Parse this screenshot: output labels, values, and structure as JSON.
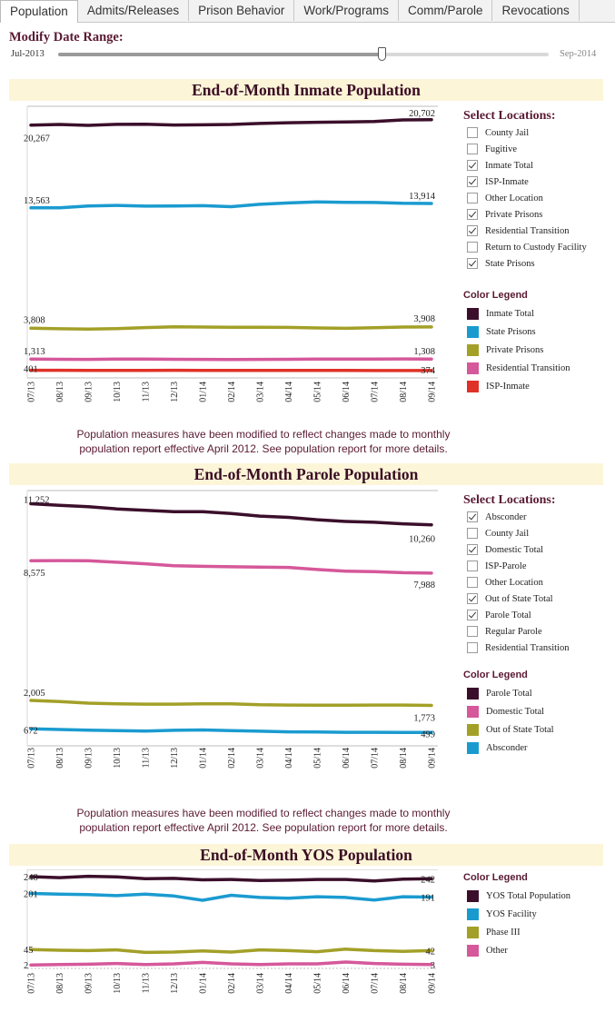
{
  "tabs": [
    "Population",
    "Admits/Releases",
    "Prison Behavior",
    "Work/Programs",
    "Comm/Parole",
    "Revocations"
  ],
  "active_tab": 0,
  "date_range": {
    "title": "Modify Date Range:",
    "start_label": "Jul-2013",
    "end_label": "Sep-2014",
    "position": 0.66
  },
  "note_line1": "Population measures have been modified to reflect changes made to monthly",
  "note_line2": "population report effective April 2012. See population report for more details.",
  "inmate": {
    "banner": "End-of-Month Inmate Population",
    "select_title": "Select Locations:",
    "locations": [
      {
        "label": "County Jail",
        "checked": false
      },
      {
        "label": "Fugitive",
        "checked": false
      },
      {
        "label": "Inmate Total",
        "checked": true
      },
      {
        "label": "ISP-Inmate",
        "checked": true
      },
      {
        "label": "Other Location",
        "checked": false
      },
      {
        "label": "Private Prisons",
        "checked": true
      },
      {
        "label": "Residential Transition",
        "checked": true
      },
      {
        "label": "Return to Custody Facility",
        "checked": false
      },
      {
        "label": "State Prisons",
        "checked": true
      }
    ],
    "legend_title": "Color Legend",
    "legend": [
      {
        "label": "Inmate Total",
        "color": "#3b0f2b"
      },
      {
        "label": "State Prisons",
        "color": "#1a9bd0"
      },
      {
        "label": "Private Prisons",
        "color": "#a3a028"
      },
      {
        "label": "Residential Transition",
        "color": "#d5589a"
      },
      {
        "label": "ISP-Inmate",
        "color": "#e03128"
      }
    ]
  },
  "parole": {
    "banner": "End-of-Month Parole Population",
    "select_title": "Select Locations:",
    "locations": [
      {
        "label": "Absconder",
        "checked": true
      },
      {
        "label": "County Jail",
        "checked": false
      },
      {
        "label": "Domestic Total",
        "checked": true
      },
      {
        "label": "ISP-Parole",
        "checked": false
      },
      {
        "label": "Other Location",
        "checked": false
      },
      {
        "label": "Out of State Total",
        "checked": true
      },
      {
        "label": "Parole Total",
        "checked": true
      },
      {
        "label": "Regular Parole",
        "checked": false
      },
      {
        "label": "Residential Transition",
        "checked": false
      }
    ],
    "legend_title": "Color Legend",
    "legend": [
      {
        "label": "Parole Total",
        "color": "#3b0f2b"
      },
      {
        "label": "Domestic Total",
        "color": "#d5589a"
      },
      {
        "label": "Out of State Total",
        "color": "#a3a028"
      },
      {
        "label": "Absconder",
        "color": "#1a9bd0"
      }
    ]
  },
  "yos": {
    "banner": "End-of-Month YOS Population",
    "legend_title": "Color Legend",
    "legend": [
      {
        "label": "YOS Total Population",
        "color": "#3b0f2b"
      },
      {
        "label": "YOS Facility",
        "color": "#1a9bd0"
      },
      {
        "label": "Phase III",
        "color": "#a3a028"
      },
      {
        "label": "Other",
        "color": "#d5589a"
      }
    ]
  },
  "chart_data": [
    {
      "type": "line",
      "title": "End-of-Month Inmate Population",
      "x": [
        "07/13",
        "08/13",
        "09/13",
        "10/13",
        "11/13",
        "12/13",
        "01/14",
        "02/14",
        "03/14",
        "04/14",
        "05/14",
        "06/14",
        "07/14",
        "08/14",
        "09/14"
      ],
      "ylim": [
        0,
        21500
      ],
      "series": [
        {
          "name": "Inmate Total",
          "color": "#3b0f2b",
          "start_label": "20,267",
          "end_label": "20,702",
          "values": [
            20267,
            20320,
            20250,
            20330,
            20340,
            20280,
            20290,
            20320,
            20400,
            20460,
            20500,
            20520,
            20560,
            20690,
            20702
          ]
        },
        {
          "name": "State Prisons",
          "color": "#1a9bd0",
          "start_label": "13,563",
          "end_label": "13,914",
          "values": [
            13563,
            13560,
            13720,
            13760,
            13700,
            13720,
            13740,
            13660,
            13850,
            13960,
            14040,
            14010,
            14000,
            13930,
            13914
          ]
        },
        {
          "name": "Private Prisons",
          "color": "#a3a028",
          "start_label": "3,808",
          "end_label": "3,908",
          "values": [
            3808,
            3760,
            3730,
            3770,
            3860,
            3920,
            3900,
            3890,
            3890,
            3870,
            3830,
            3800,
            3850,
            3900,
            3908
          ]
        },
        {
          "name": "Residential Transition",
          "color": "#d5589a",
          "start_label": "1,313",
          "end_label": "1,308",
          "values": [
            1313,
            1290,
            1280,
            1300,
            1310,
            1290,
            1280,
            1270,
            1280,
            1290,
            1300,
            1310,
            1300,
            1320,
            1308
          ]
        },
        {
          "name": "ISP-Inmate",
          "color": "#e03128",
          "start_label": "401",
          "end_label": "374",
          "values": [
            401,
            395,
            390,
            385,
            390,
            395,
            390,
            385,
            380,
            382,
            385,
            380,
            378,
            375,
            374
          ]
        }
      ]
    },
    {
      "type": "line",
      "title": "End-of-Month Parole Population",
      "x": [
        "07/13",
        "08/13",
        "09/13",
        "10/13",
        "11/13",
        "12/13",
        "01/14",
        "02/14",
        "03/14",
        "04/14",
        "05/14",
        "06/14",
        "07/14",
        "08/14",
        "09/14"
      ],
      "ylim": [
        0,
        11700
      ],
      "series": [
        {
          "name": "Parole Total",
          "color": "#3b0f2b",
          "start_label": "11,252",
          "end_label": "10,260",
          "values": [
            11252,
            11180,
            11110,
            11010,
            10940,
            10880,
            10880,
            10790,
            10670,
            10610,
            10500,
            10420,
            10380,
            10310,
            10260
          ]
        },
        {
          "name": "Domestic Total",
          "color": "#d5589a",
          "start_label": "8,575",
          "end_label": "7,988",
          "values": [
            8575,
            8580,
            8570,
            8500,
            8430,
            8340,
            8310,
            8290,
            8270,
            8260,
            8160,
            8080,
            8060,
            8010,
            7988
          ]
        },
        {
          "name": "Out of State Total",
          "color": "#a3a028",
          "start_label": "2,005",
          "end_label": "1,773",
          "values": [
            2005,
            1950,
            1880,
            1850,
            1830,
            1830,
            1850,
            1850,
            1800,
            1790,
            1780,
            1780,
            1790,
            1790,
            1773
          ]
        },
        {
          "name": "Absconder",
          "color": "#1a9bd0",
          "start_label": "672",
          "end_label": "499",
          "values": [
            672,
            640,
            610,
            590,
            570,
            600,
            620,
            590,
            560,
            530,
            520,
            510,
            510,
            505,
            499
          ]
        }
      ]
    },
    {
      "type": "line",
      "title": "End-of-Month YOS Population",
      "x": [
        "07/13",
        "08/13",
        "09/13",
        "10/13",
        "11/13",
        "12/13",
        "01/14",
        "02/14",
        "03/14",
        "04/14",
        "05/14",
        "06/14",
        "07/14",
        "08/14",
        "09/14"
      ],
      "ylim": [
        0,
        258
      ],
      "series": [
        {
          "name": "YOS Total Population",
          "color": "#3b0f2b",
          "start_label": "248",
          "end_label": "242",
          "values": [
            248,
            245,
            249,
            247,
            242,
            243,
            239,
            240,
            237,
            238,
            240,
            240,
            236,
            241,
            242
          ]
        },
        {
          "name": "YOS Facility",
          "color": "#1a9bd0",
          "start_label": "201",
          "end_label": "191",
          "values": [
            201,
            199,
            198,
            195,
            199,
            194,
            182,
            196,
            190,
            188,
            192,
            190,
            183,
            192,
            191
          ]
        },
        {
          "name": "Phase III",
          "color": "#a3a028",
          "start_label": "45",
          "end_label": "42",
          "values": [
            45,
            43,
            42,
            44,
            37,
            38,
            41,
            38,
            44,
            42,
            39,
            46,
            42,
            40,
            42
          ]
        },
        {
          "name": "Other",
          "color": "#d5589a",
          "start_label": "2",
          "end_label": "3",
          "values": [
            2,
            3,
            4,
            6,
            3,
            5,
            9,
            5,
            3,
            5,
            5,
            10,
            6,
            4,
            3
          ]
        }
      ]
    }
  ]
}
